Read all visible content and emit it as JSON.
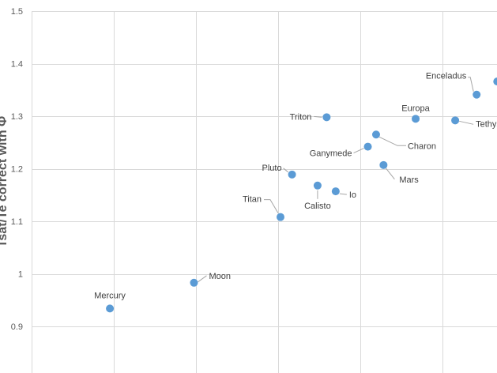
{
  "chart_data": {
    "type": "scatter",
    "ylabel": "Tsat/Te correct with Φ",
    "ylim": [
      0.85,
      1.5
    ],
    "yticks": [
      "0.9",
      "1",
      "1.1",
      "1.2",
      "1.3",
      "1.4",
      "1.5"
    ],
    "grid": true,
    "marker_color": "#5b9bd5",
    "gridline_color": "#d9d9d9",
    "points": [
      {
        "name": "Mercury",
        "x": 0.95,
        "y": 0.934
      },
      {
        "name": "Moon",
        "x": 1.97,
        "y": 0.983
      },
      {
        "name": "Titan",
        "x": 3.02,
        "y": 1.108
      },
      {
        "name": "Pluto",
        "x": 3.16,
        "y": 1.189
      },
      {
        "name": "Triton",
        "x": 3.58,
        "y": 1.298
      },
      {
        "name": "Calisto",
        "x": 3.47,
        "y": 1.168
      },
      {
        "name": "Io",
        "x": 3.69,
        "y": 1.157
      },
      {
        "name": "Ganymede",
        "x": 4.08,
        "y": 1.242
      },
      {
        "name": "Charon",
        "x": 4.18,
        "y": 1.265
      },
      {
        "name": "Mars",
        "x": 4.27,
        "y": 1.207
      },
      {
        "name": "Europa",
        "x": 4.66,
        "y": 1.295
      },
      {
        "name": "Tethys",
        "x": 5.14,
        "y": 1.292
      },
      {
        "name": "Enceladus",
        "x": 5.4,
        "y": 1.341
      },
      {
        "name": "",
        "x": 5.65,
        "y": 1.366
      }
    ]
  }
}
